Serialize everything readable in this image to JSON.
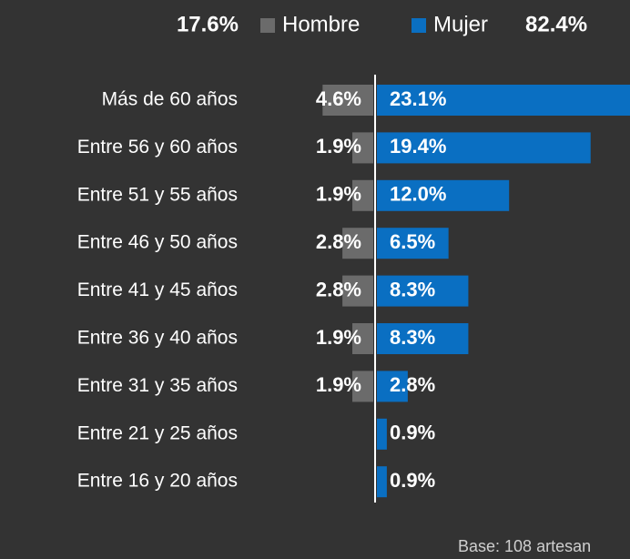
{
  "chart_data": {
    "type": "bar",
    "orientation": "horizontal",
    "layout": "diverging",
    "categories": [
      "Más de 60 años",
      "Entre 56 y 60 años",
      "Entre 51 y 55 años",
      "Entre 46 y 50 años",
      "Entre 41 y 45 años",
      "Entre 36 y 40 años",
      "Entre 31 y 35 años",
      "Entre 21 y 25 años",
      "Entre 16 y 20 años"
    ],
    "series": [
      {
        "name": "Hombre",
        "color": "#6b6b6b",
        "side": "left",
        "total": 17.6,
        "total_label": "17.6%",
        "values": [
          4.6,
          1.9,
          1.9,
          2.8,
          2.8,
          1.9,
          1.9,
          null,
          null
        ],
        "value_labels": [
          "4.6%",
          "1.9%",
          "1.9%",
          "2.8%",
          "2.8%",
          "1.9%",
          "1.9%",
          null,
          null
        ]
      },
      {
        "name": "Mujer",
        "color": "#0a6fc2",
        "side": "right",
        "total": 82.4,
        "total_label": "82.4%",
        "values": [
          23.1,
          19.4,
          12.0,
          6.5,
          8.3,
          8.3,
          2.8,
          0.9,
          0.9
        ],
        "value_labels": [
          "23.1%",
          "19.4%",
          "12.0%",
          "6.5%",
          "8.3%",
          "8.3%",
          "2.8%",
          "0.9%",
          "0.9%"
        ]
      }
    ],
    "footnote": "Base: 108 artesan"
  }
}
